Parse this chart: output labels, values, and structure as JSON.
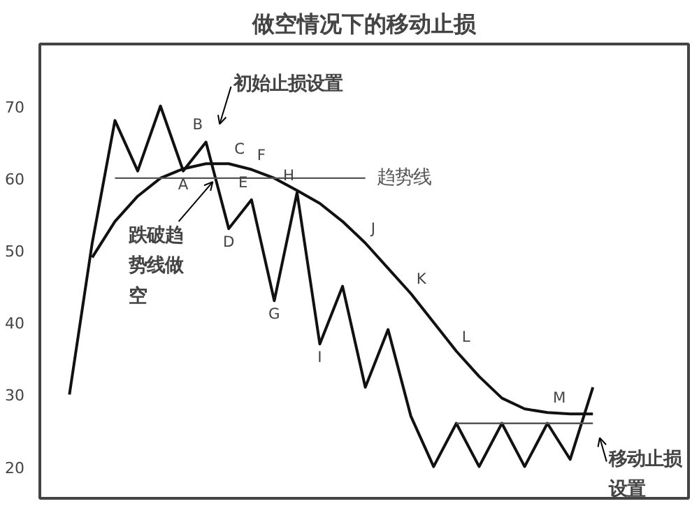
{
  "chart_data": {
    "type": "line",
    "title": "做空情况下的移动止损",
    "categories": [
      null,
      null,
      null,
      null,
      null,
      null,
      null,
      null,
      null,
      null,
      null,
      null,
      null,
      null,
      null,
      null,
      null,
      null,
      null,
      null,
      null,
      null,
      null,
      null
    ],
    "series": [
      {
        "color": "#111111",
        "values": [
          30,
          51,
          68,
          61,
          70,
          61,
          65,
          53,
          57,
          43,
          58,
          37,
          45,
          31,
          39,
          27,
          20,
          26,
          20,
          26,
          20,
          26,
          21,
          31
        ],
        "value_labels": [
          null,
          null,
          null,
          null,
          null,
          "A",
          "B",
          "D",
          "E",
          "G",
          "H",
          "I",
          null,
          null,
          null,
          null,
          null,
          null,
          null,
          null,
          null,
          null,
          null,
          null
        ]
      },
      {
        "color": "#111111",
        "values": [
          null,
          49,
          54,
          57.5,
          60,
          61.3,
          62,
          62,
          61.2,
          60,
          58.3,
          56.5,
          54,
          51,
          47.5,
          44,
          40,
          36,
          32.5,
          29.5,
          28,
          27.5,
          27.3,
          27.3
        ],
        "value_labels": [
          null,
          null,
          null,
          null,
          null,
          null,
          null,
          "C",
          "F",
          null,
          null,
          null,
          null,
          "J",
          null,
          "K",
          null,
          "L",
          null,
          null,
          null,
          "M",
          null,
          null
        ]
      },
      {
        "name": "趋势线",
        "color": "#555555",
        "values": [
          null,
          null,
          60,
          60,
          60,
          60,
          60,
          60,
          60,
          60,
          60,
          60,
          60,
          60,
          null,
          null,
          null,
          null,
          null,
          null,
          null,
          null,
          null,
          null
        ]
      },
      {
        "color": "#555555",
        "values": [
          null,
          null,
          null,
          null,
          null,
          null,
          null,
          null,
          null,
          null,
          null,
          null,
          null,
          null,
          null,
          null,
          null,
          26,
          26,
          26,
          26,
          26,
          26,
          26
        ]
      }
    ],
    "ylim": [
      15.6,
      78.6
    ],
    "yticks": [
      20,
      30,
      40,
      50,
      60,
      70
    ],
    "tick_labels": "y",
    "grid": false,
    "annotations": [
      "初始止损设置",
      "跌破趋势线做空",
      "移动止损设置"
    ]
  }
}
